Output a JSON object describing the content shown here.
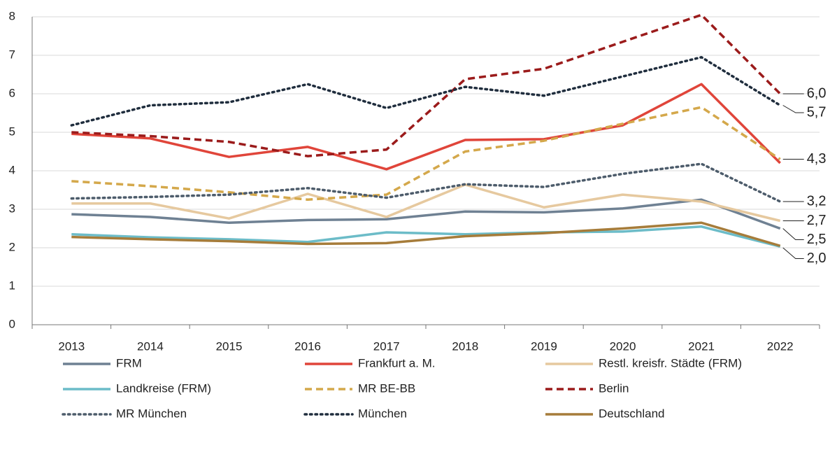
{
  "chart_data": {
    "type": "line",
    "categories": [
      "2013",
      "2014",
      "2015",
      "2016",
      "2017",
      "2018",
      "2019",
      "2020",
      "2021",
      "2022"
    ],
    "ylim": [
      0,
      8
    ],
    "yticks": [
      0,
      1,
      2,
      3,
      4,
      5,
      6,
      7,
      8
    ],
    "grid": true,
    "legend": "bottom",
    "series": [
      {
        "name": "FRM",
        "color": "#6f8193",
        "dash": "solid",
        "values": [
          2.87,
          2.8,
          2.65,
          2.72,
          2.74,
          2.94,
          2.92,
          3.02,
          3.25,
          2.5
        ]
      },
      {
        "name": "Frankfurt a. M.",
        "color": "#e0453a",
        "dash": "solid",
        "values": [
          4.96,
          4.84,
          4.36,
          4.62,
          4.04,
          4.8,
          4.82,
          5.18,
          6.25,
          4.2
        ]
      },
      {
        "name": "Restl. kreisfr. Städte (FRM)",
        "color": "#e6c99f",
        "dash": "solid",
        "values": [
          3.15,
          3.15,
          2.76,
          3.4,
          2.8,
          3.64,
          3.05,
          3.38,
          3.2,
          2.7
        ]
      },
      {
        "name": "Landkreise (FRM)",
        "color": "#6cbcc8",
        "dash": "solid",
        "values": [
          2.35,
          2.27,
          2.22,
          2.15,
          2.4,
          2.35,
          2.4,
          2.42,
          2.55,
          2.03
        ]
      },
      {
        "name": "MR BE-BB",
        "color": "#d4a84b",
        "dash": "dashed",
        "values": [
          3.73,
          3.6,
          3.44,
          3.25,
          3.38,
          4.5,
          4.78,
          5.22,
          5.65,
          4.3
        ]
      },
      {
        "name": "Berlin",
        "color": "#9b1b1b",
        "dash": "dashed",
        "values": [
          5.0,
          4.9,
          4.75,
          4.38,
          4.55,
          6.38,
          6.65,
          7.35,
          8.05,
          6.0
        ]
      },
      {
        "name": "MR München",
        "color": "#4d5c6b",
        "dash": "dotted",
        "values": [
          3.28,
          3.32,
          3.38,
          3.55,
          3.3,
          3.65,
          3.58,
          3.92,
          4.18,
          3.2
        ]
      },
      {
        "name": "München",
        "color": "#1f2d3d",
        "dash": "dotted",
        "values": [
          5.18,
          5.7,
          5.78,
          6.25,
          5.63,
          6.18,
          5.95,
          6.45,
          6.95,
          5.7
        ]
      },
      {
        "name": "Deutschland",
        "color": "#a67c3a",
        "dash": "solid",
        "values": [
          2.28,
          2.22,
          2.17,
          2.1,
          2.12,
          2.3,
          2.38,
          2.5,
          2.65,
          2.05
        ]
      }
    ],
    "annotations": [
      {
        "text": "6,0",
        "value": 6.0
      },
      {
        "text": "5,7",
        "value": 5.7
      },
      {
        "text": "4,3",
        "value": 4.3
      },
      {
        "text": "3,2",
        "value": 3.2
      },
      {
        "text": "2,7",
        "value": 2.7
      },
      {
        "text": "2,5",
        "value": 2.5
      },
      {
        "text": "2,0",
        "value": 2.0
      }
    ]
  }
}
